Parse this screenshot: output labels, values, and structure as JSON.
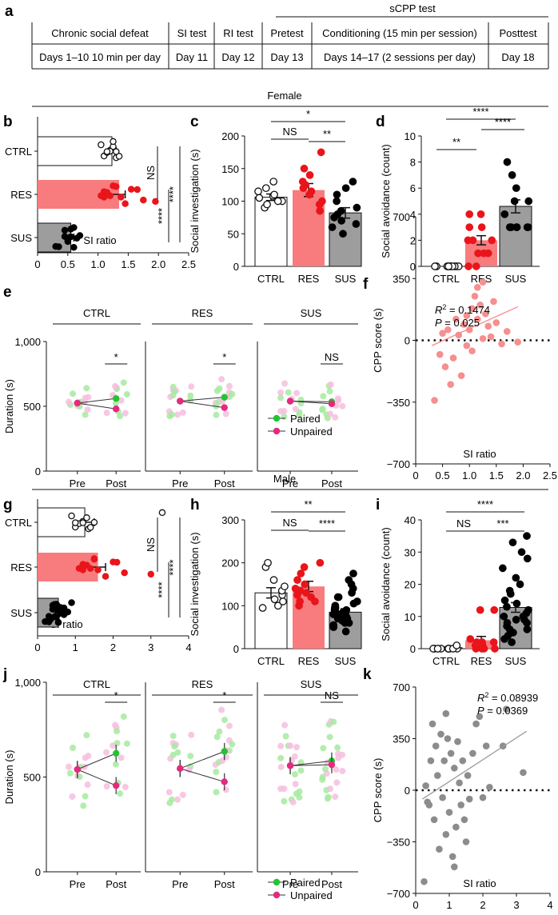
{
  "panel_labels": {
    "a": "a",
    "b": "b",
    "c": "c",
    "d": "d",
    "e": "e",
    "f": "f",
    "g": "g",
    "h": "h",
    "i": "i",
    "j": "j",
    "k": "k"
  },
  "timeline": {
    "group_header": "sCPP test",
    "headers": [
      "Chronic social defeat",
      "SI test",
      "RI test",
      "Pretest",
      "Conditioning (15 min per session)",
      "Posttest"
    ],
    "days": [
      "Days 1–10 10 min per day",
      "Day 11",
      "Day 12",
      "Day 13",
      "Days 14–17 (2 sessions per day)",
      "Day 18"
    ]
  },
  "sections": {
    "female": "Female",
    "male": "Male"
  },
  "colors": {
    "ctrl": "#ffffff",
    "res": "#f87c7e",
    "res_dot": "#e9151b",
    "sus": "#9d9d9d",
    "sus_dot": "#000000",
    "paired": "#22c432",
    "unpaired": "#e8287f",
    "paired_light": "#a6eaa0",
    "unpaired_light": "#f6bede",
    "fit_f": "#f78a8c",
    "fit_m": "#9a9a9a",
    "scatter_f": "#f58f90",
    "scatter_m": "#8c8c8c"
  },
  "chart_data": [
    {
      "id": "b",
      "type": "bar",
      "orientation": "horizontal",
      "categories": [
        "CTRL",
        "RES",
        "SUS"
      ],
      "values": [
        1.23,
        1.35,
        0.55
      ],
      "errors": [
        0.07,
        0.1,
        0.05
      ],
      "xlabel": "SI ratio",
      "xlim": [
        0,
        2.5
      ],
      "xticks": [
        "0",
        "0.5",
        "1.0",
        "1.5",
        "2.0",
        "2.5"
      ],
      "points": [
        [
          1.05,
          1.1,
          1.15,
          1.2,
          1.25,
          1.3,
          1.35,
          1.2,
          1.15,
          1.3,
          1.25
        ],
        [
          1.05,
          1.1,
          1.15,
          1.2,
          1.3,
          1.38,
          1.45,
          1.55,
          1.65,
          1.75,
          1.95,
          1.1,
          1.25
        ],
        [
          0.3,
          0.35,
          0.45,
          0.5,
          0.55,
          0.6,
          0.65,
          0.7,
          0.5,
          0.45,
          0.55,
          0.6
        ]
      ],
      "comparisons": [
        {
          "label": "NS",
          "pair": [
            "CTRL",
            "RES"
          ]
        },
        {
          "label": "****",
          "pair": [
            "RES",
            "SUS"
          ]
        },
        {
          "label": "****",
          "pair": [
            "CTRL",
            "SUS"
          ]
        }
      ]
    },
    {
      "id": "c",
      "type": "bar",
      "categories": [
        "CTRL",
        "RES",
        "SUS"
      ],
      "values": [
        106,
        117,
        82
      ],
      "errors": [
        5,
        10,
        8
      ],
      "ylabel": "Social investigation (s)",
      "ylim": [
        0,
        200
      ],
      "yticks": [
        "0",
        "50",
        "100",
        "150",
        "200"
      ],
      "points": [
        [
          90,
          95,
          100,
          105,
          108,
          110,
          115,
          120,
          130,
          100
        ],
        [
          85,
          95,
          100,
          115,
          120,
          125,
          130,
          140,
          150,
          175,
          110
        ],
        [
          50,
          60,
          70,
          75,
          80,
          85,
          90,
          100,
          110,
          120,
          130,
          65
        ]
      ],
      "comparisons": [
        {
          "label": "NS",
          "pair": [
            "CTRL",
            "RES"
          ]
        },
        {
          "label": "**",
          "pair": [
            "RES",
            "SUS"
          ]
        },
        {
          "label": "*",
          "pair": [
            "CTRL",
            "SUS"
          ]
        }
      ]
    },
    {
      "id": "d",
      "type": "bar",
      "categories": [
        "CTRL",
        "RES",
        "SUS"
      ],
      "values": [
        0,
        2,
        4.6
      ],
      "errors": [
        0,
        0.35,
        0.5
      ],
      "ylabel": "Social avoidance (count)",
      "ylim": [
        0,
        10
      ],
      "yticks": [
        "0",
        "2",
        "4",
        "6",
        "8",
        "10"
      ],
      "points": [
        [
          0,
          0,
          0,
          0,
          0,
          0,
          0,
          0,
          0,
          0,
          0
        ],
        [
          0,
          0,
          1,
          1,
          2,
          2,
          2,
          3,
          3,
          4,
          4,
          1
        ],
        [
          3,
          3,
          3,
          3,
          3,
          4,
          5,
          5,
          6,
          7,
          8,
          3
        ]
      ],
      "comparisons": [
        {
          "label": "**",
          "pair": [
            "CTRL",
            "RES"
          ]
        },
        {
          "label": "****",
          "pair": [
            "RES",
            "SUS"
          ]
        },
        {
          "label": "****",
          "pair": [
            "CTRL",
            "SUS"
          ]
        }
      ]
    },
    {
      "id": "e",
      "type": "line",
      "groups": [
        "CTRL",
        "RES",
        "SUS"
      ],
      "x": [
        "Pre",
        "Post"
      ],
      "ylabel": "Duration (s)",
      "ylim": [
        0,
        1000
      ],
      "yticks": [
        "0",
        "500",
        "1,000"
      ],
      "series": [
        {
          "name": "Paired",
          "values": [
            [
              525,
              560
            ],
            [
              540,
              570
            ],
            [
              540,
              535
            ]
          ]
        },
        {
          "name": "Unpaired",
          "values": [
            [
              525,
              480
            ],
            [
              540,
              490
            ],
            [
              540,
              520
            ]
          ]
        }
      ],
      "significance": [
        "*",
        "*",
        "NS"
      ]
    },
    {
      "id": "f",
      "type": "scatter",
      "xlabel": "SI ratio",
      "ylabel": "CPP score (s)",
      "xlim": [
        0,
        2.5
      ],
      "ylim": [
        -700,
        700
      ],
      "xticks": [
        "0",
        "0.5",
        "1.0",
        "1.5",
        "2.0",
        "2.5"
      ],
      "yticks": [
        "−700",
        "−350",
        "0",
        "350",
        "700"
      ],
      "annotation": {
        "r2_label": "R",
        "r2_sup": "2",
        "r2_value": " = 0.1474",
        "p_label": "P",
        "p_value": " = 0.025"
      },
      "fit": {
        "x": [
          0.3,
          1.9
        ],
        "y": [
          -30,
          190
        ]
      },
      "points": [
        [
          0.35,
          -340
        ],
        [
          0.45,
          -80
        ],
        [
          0.5,
          40
        ],
        [
          0.55,
          -150
        ],
        [
          0.6,
          60
        ],
        [
          0.7,
          -100
        ],
        [
          0.75,
          120
        ],
        [
          0.8,
          30
        ],
        [
          0.85,
          -200
        ],
        [
          0.9,
          90
        ],
        [
          0.95,
          140
        ],
        [
          1.0,
          60
        ],
        [
          1.05,
          180
        ],
        [
          1.1,
          250
        ],
        [
          1.15,
          300
        ],
        [
          1.2,
          200
        ],
        [
          1.25,
          330
        ],
        [
          1.3,
          150
        ],
        [
          1.35,
          80
        ],
        [
          1.4,
          20
        ],
        [
          1.5,
          100
        ],
        [
          1.6,
          -20
        ],
        [
          1.7,
          50
        ],
        [
          1.9,
          -10
        ],
        [
          0.95,
          -30
        ],
        [
          1.15,
          120
        ],
        [
          1.05,
          -60
        ],
        [
          0.65,
          -250
        ],
        [
          1.25,
          10
        ],
        [
          1.45,
          220
        ]
      ]
    },
    {
      "id": "g",
      "type": "bar",
      "orientation": "horizontal",
      "categories": [
        "CTRL",
        "RES",
        "SUS"
      ],
      "values": [
        1.25,
        1.6,
        0.55
      ],
      "errors": [
        0.25,
        0.2,
        0.05
      ],
      "xlabel": "SI ratio",
      "xlim": [
        0,
        4
      ],
      "xticks": [
        "0",
        "1",
        "2",
        "3",
        "4"
      ],
      "points": [
        [
          0.9,
          1.0,
          1.1,
          1.2,
          1.3,
          1.35,
          1.4,
          1.5,
          1.0,
          1.2,
          3.3
        ],
        [
          1.1,
          1.2,
          1.3,
          1.4,
          1.5,
          1.6,
          1.8,
          2.0,
          2.1,
          2.3,
          3.0,
          1.2,
          1.5
        ],
        [
          0.2,
          0.3,
          0.4,
          0.45,
          0.5,
          0.55,
          0.6,
          0.65,
          0.7,
          0.75,
          0.8,
          0.9,
          0.5,
          0.4,
          0.6,
          0.35,
          0.55,
          0.7,
          0.45,
          0.65,
          0.5,
          0.3
        ]
      ],
      "comparisons": [
        {
          "label": "NS",
          "pair": [
            "CTRL",
            "RES"
          ]
        },
        {
          "label": "****",
          "pair": [
            "RES",
            "SUS"
          ]
        },
        {
          "label": "****",
          "pair": [
            "CTRL",
            "SUS"
          ]
        }
      ]
    },
    {
      "id": "h",
      "type": "bar",
      "categories": [
        "CTRL",
        "RES",
        "SUS"
      ],
      "values": [
        130,
        145,
        85
      ],
      "errors": [
        12,
        12,
        8
      ],
      "ylabel": "Social investigation (s)",
      "ylim": [
        0,
        300
      ],
      "yticks": [
        "0",
        "100",
        "200",
        "300"
      ],
      "points": [
        [
          95,
          100,
          110,
          115,
          125,
          135,
          145,
          160,
          190,
          200
        ],
        [
          100,
          110,
          120,
          125,
          130,
          140,
          150,
          160,
          175,
          190,
          200,
          110,
          135
        ],
        [
          40,
          50,
          55,
          60,
          65,
          70,
          75,
          80,
          85,
          90,
          95,
          100,
          105,
          110,
          120,
          130,
          140,
          150,
          160,
          175,
          70,
          80,
          90,
          60,
          100,
          120,
          85,
          95
        ]
      ],
      "comparisons": [
        {
          "label": "NS",
          "pair": [
            "CTRL",
            "RES"
          ]
        },
        {
          "label": "****",
          "pair": [
            "RES",
            "SUS"
          ]
        },
        {
          "label": "**",
          "pair": [
            "CTRL",
            "SUS"
          ]
        }
      ]
    },
    {
      "id": "i",
      "type": "bar",
      "categories": [
        "CTRL",
        "RES",
        "SUS"
      ],
      "values": [
        0.3,
        2.6,
        12.8
      ],
      "errors": [
        0.2,
        1.2,
        1.5
      ],
      "ylabel": "Social avoidance (count)",
      "ylim": [
        0,
        40
      ],
      "yticks": [
        "0",
        "10",
        "20",
        "30",
        "40"
      ],
      "points": [
        [
          0,
          0,
          0,
          0,
          0,
          0,
          0,
          0,
          0,
          1
        ],
        [
          0,
          0,
          0,
          1,
          1,
          1,
          2,
          2,
          2,
          3,
          12,
          12,
          0
        ],
        [
          2,
          3,
          4,
          5,
          6,
          7,
          8,
          9,
          10,
          11,
          12,
          13,
          15,
          17,
          18,
          20,
          22,
          25,
          28,
          30,
          33,
          35,
          6,
          8,
          10,
          14,
          5,
          9
        ]
      ],
      "comparisons": [
        {
          "label": "NS",
          "pair": [
            "CTRL",
            "RES"
          ]
        },
        {
          "label": "***",
          "pair": [
            "RES",
            "SUS"
          ]
        },
        {
          "label": "****",
          "pair": [
            "CTRL",
            "SUS"
          ]
        }
      ]
    },
    {
      "id": "j",
      "type": "line",
      "groups": [
        "CTRL",
        "RES",
        "SUS"
      ],
      "x": [
        "Pre",
        "Post"
      ],
      "ylabel": "Duration (s)",
      "ylim": [
        0,
        1000
      ],
      "yticks": [
        "0",
        "500",
        "1,000"
      ],
      "series": [
        {
          "name": "Paired",
          "values": [
            [
              540,
              625
            ],
            [
              545,
              635
            ],
            [
              560,
              585
            ]
          ]
        },
        {
          "name": "Unpaired",
          "values": [
            [
              540,
              455
            ],
            [
              545,
              475
            ],
            [
              560,
              565
            ]
          ]
        }
      ],
      "significance": [
        "*",
        "*",
        "NS"
      ]
    },
    {
      "id": "k",
      "type": "scatter",
      "xlabel": "SI ratio",
      "ylabel": "CPP score (s)",
      "xlim": [
        0,
        4
      ],
      "ylim": [
        -700,
        700
      ],
      "xticks": [
        "0",
        "1",
        "2",
        "3",
        "4"
      ],
      "yticks": [
        "−700",
        "−350",
        "0",
        "350",
        "700"
      ],
      "annotation": {
        "r2_label": "R",
        "r2_sup": "2",
        "r2_value": " = 0.08939",
        "p_label": "P",
        "p_value": " = 0.0369"
      },
      "fit": {
        "x": [
          0.2,
          3.3
        ],
        "y": [
          -60,
          400
        ]
      },
      "points": [
        [
          0.25,
          -620
        ],
        [
          0.3,
          30
        ],
        [
          0.4,
          -100
        ],
        [
          0.5,
          450
        ],
        [
          0.55,
          -200
        ],
        [
          0.6,
          300
        ],
        [
          0.65,
          100
        ],
        [
          0.7,
          -400
        ],
        [
          0.75,
          380
        ],
        [
          0.8,
          -50
        ],
        [
          0.85,
          200
        ],
        [
          0.9,
          -300
        ],
        [
          0.95,
          350
        ],
        [
          1.0,
          -150
        ],
        [
          1.05,
          250
        ],
        [
          1.1,
          -450
        ],
        [
          1.15,
          150
        ],
        [
          1.2,
          -250
        ],
        [
          1.25,
          330
        ],
        [
          1.3,
          50
        ],
        [
          1.35,
          -100
        ],
        [
          1.4,
          200
        ],
        [
          1.5,
          -350
        ],
        [
          1.55,
          100
        ],
        [
          1.6,
          -60
        ],
        [
          1.7,
          250
        ],
        [
          1.8,
          450
        ],
        [
          1.9,
          500
        ],
        [
          2.0,
          -50
        ],
        [
          2.1,
          300
        ],
        [
          2.2,
          20
        ],
        [
          2.6,
          300
        ],
        [
          2.7,
          550
        ],
        [
          3.2,
          120
        ],
        [
          0.45,
          200
        ],
        [
          0.9,
          520
        ],
        [
          1.15,
          -520
        ],
        [
          1.45,
          -200
        ],
        [
          0.35,
          -80
        ]
      ]
    }
  ]
}
